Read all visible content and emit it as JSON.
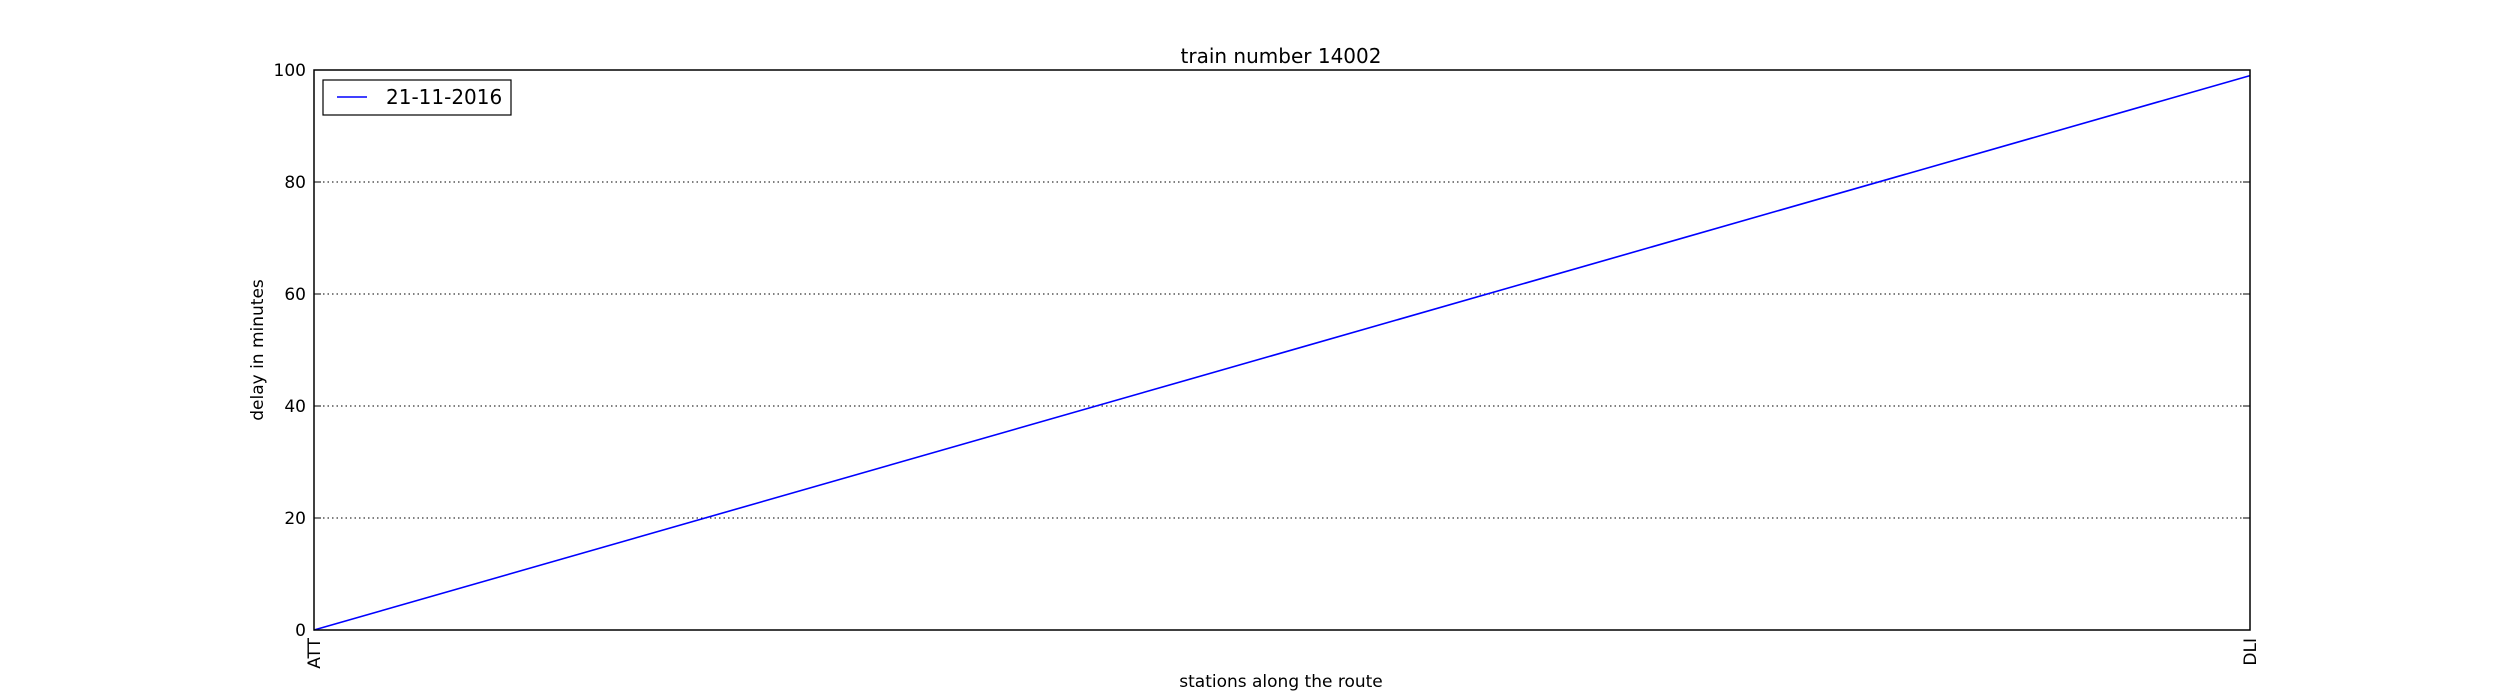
{
  "chart_data": {
    "type": "line",
    "title": "train number 14002",
    "xlabel": "stations along the route",
    "ylabel": "delay in minutes",
    "categories": [
      "ATT",
      "DLI"
    ],
    "series": [
      {
        "name": "21-11-2016",
        "values": [
          0,
          99
        ],
        "color": "#0000ff"
      }
    ],
    "ylim": [
      0,
      100
    ],
    "yticks": [
      0,
      20,
      40,
      60,
      80,
      100
    ],
    "grid": "horizontal dotted",
    "legend_position": "top-left"
  }
}
